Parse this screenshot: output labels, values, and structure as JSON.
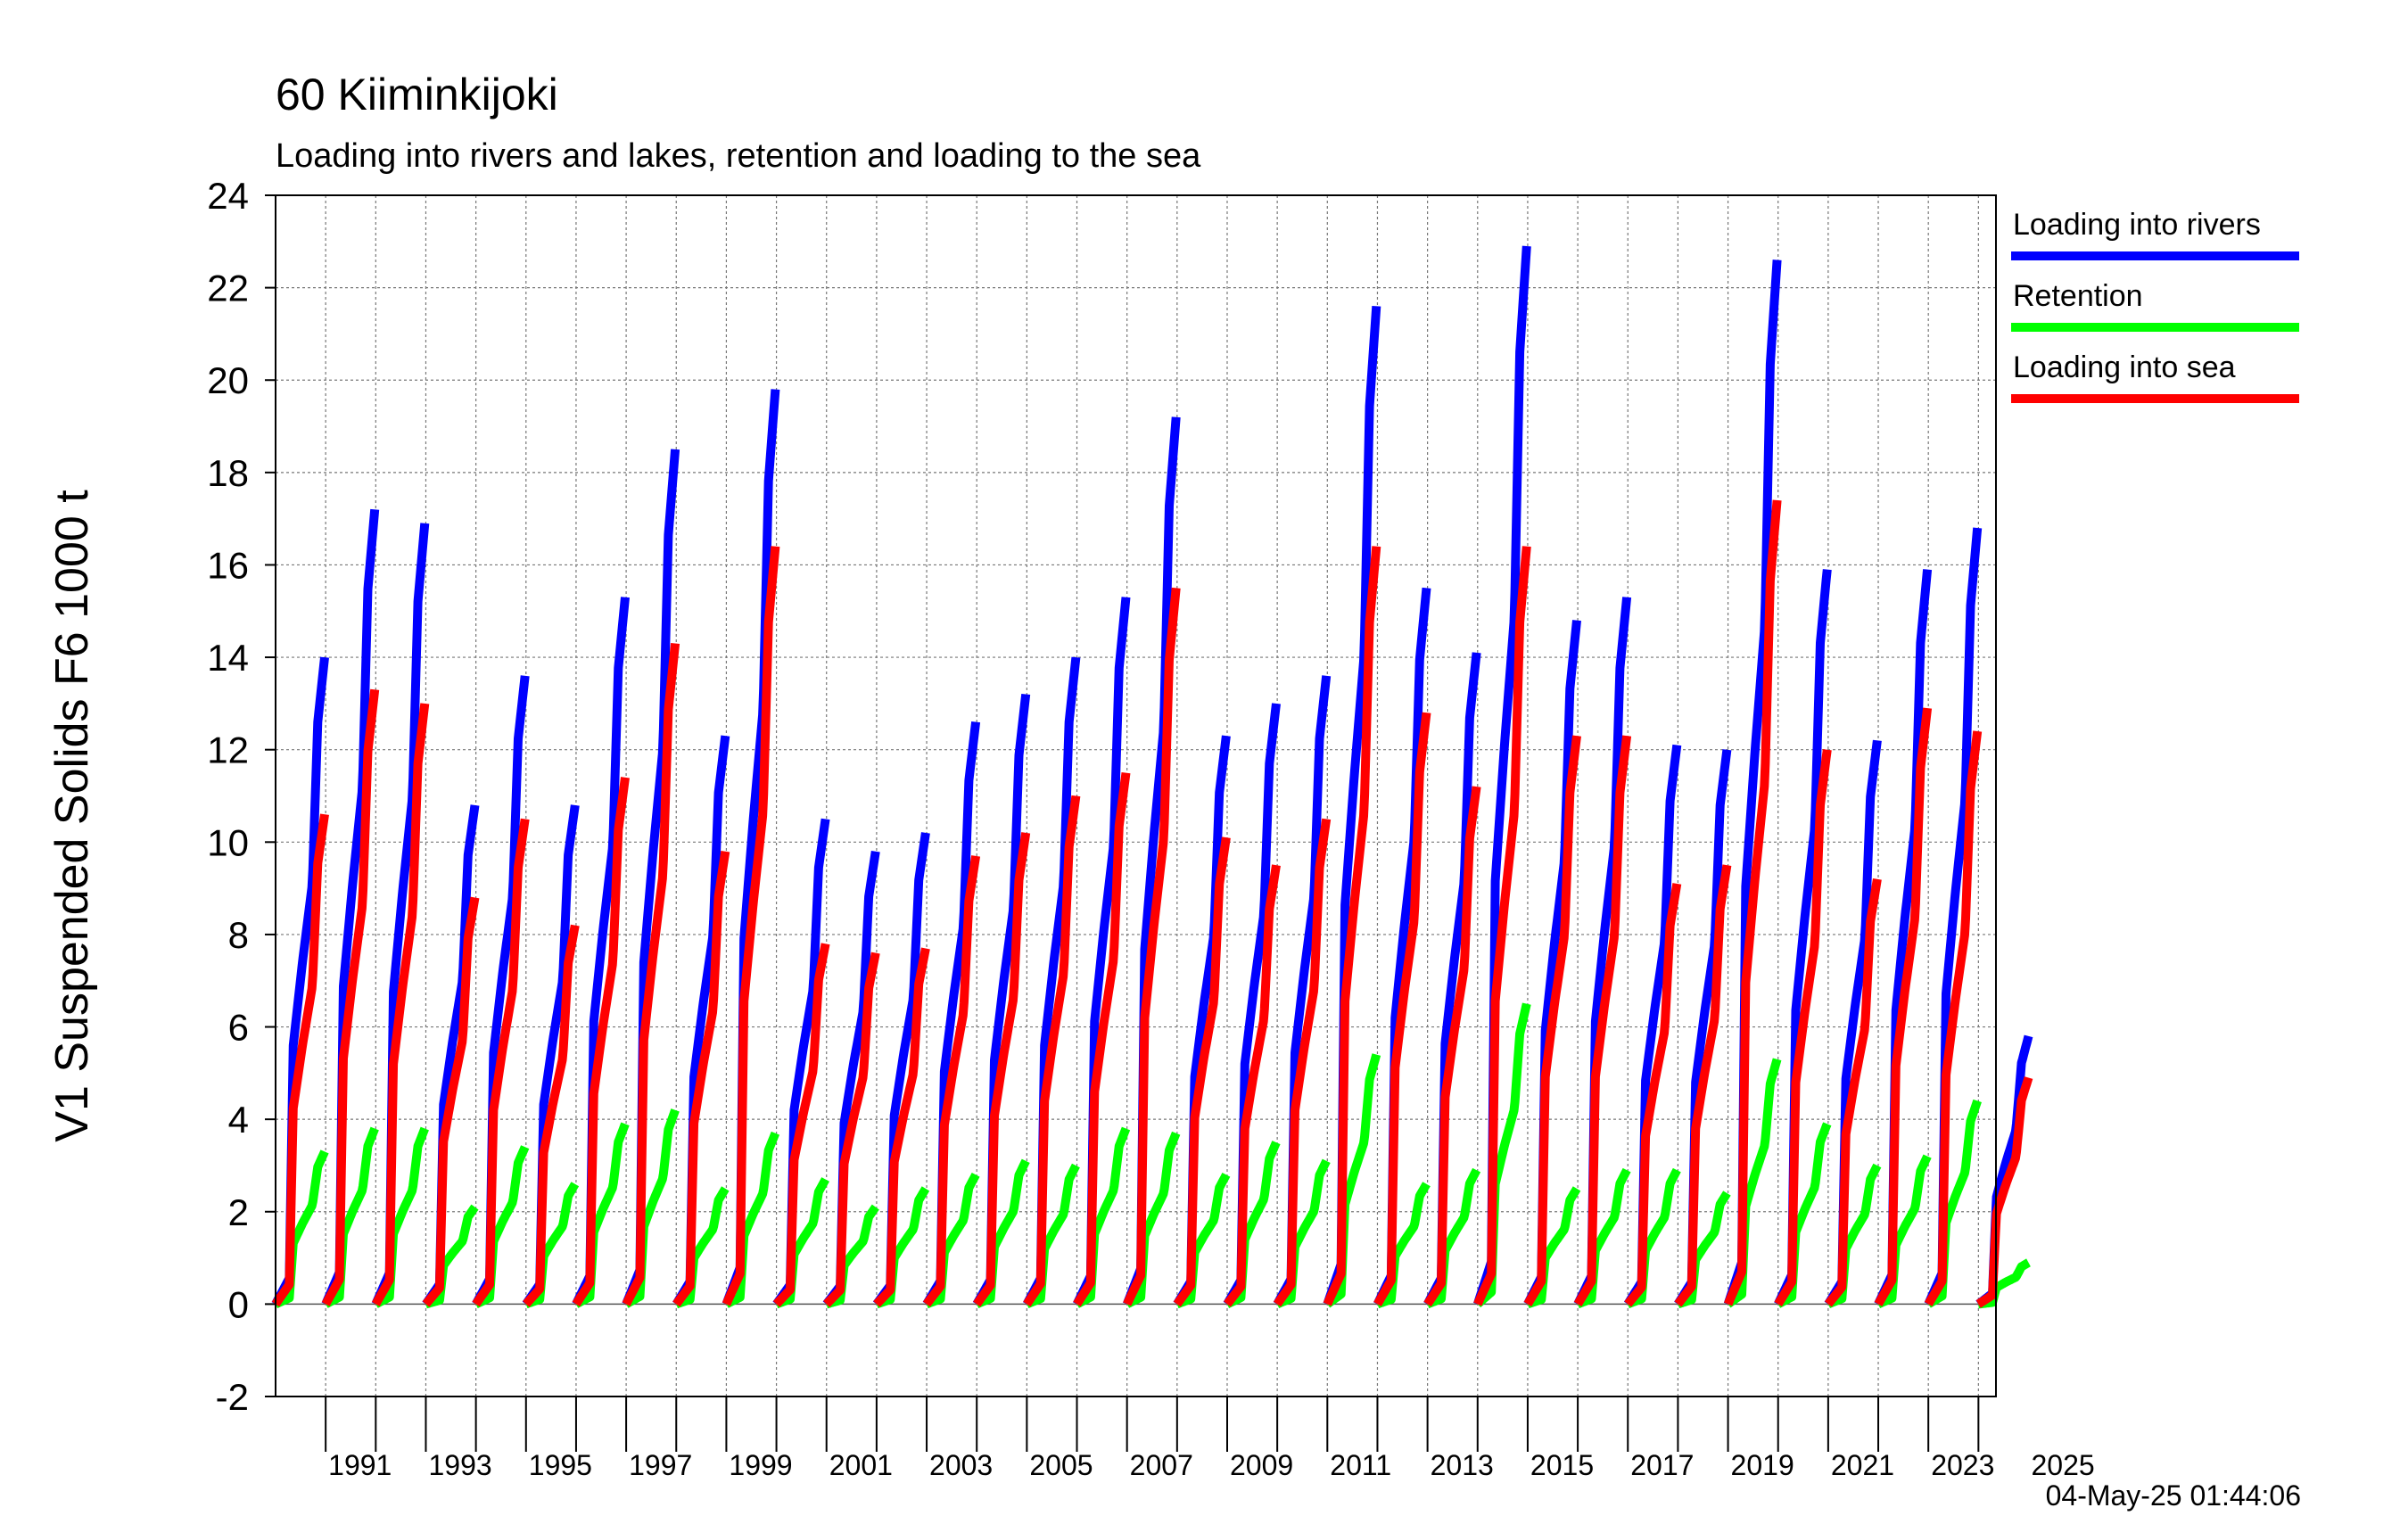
{
  "chart_data": {
    "type": "line",
    "title": "60 Kiiminkijoki",
    "subtitle": "Loading into rivers and lakes, retention and loading to the sea",
    "ylabel": "V1 Suspended Solids F6 1000 t",
    "xlabel": "",
    "timestamp": "04-May-25 01:44:06",
    "ylim": [
      -2,
      24
    ],
    "yticks": [
      "-2",
      "0",
      "2",
      "4",
      "6",
      "8",
      "10",
      "12",
      "14",
      "16",
      "18",
      "20",
      "22",
      "24"
    ],
    "xlim": [
      1990,
      2024.35
    ],
    "xticks": [
      "1991",
      "1993",
      "1995",
      "1997",
      "1999",
      "2001",
      "2003",
      "2005",
      "2007",
      "2009",
      "2011",
      "2013",
      "2015",
      "2017",
      "2019",
      "2021",
      "2023",
      "2025"
    ],
    "grid": true,
    "legend_position": "right",
    "years": [
      1990,
      1991,
      1992,
      1993,
      1994,
      1995,
      1996,
      1997,
      1998,
      1999,
      2000,
      2001,
      2002,
      2003,
      2004,
      2005,
      2006,
      2007,
      2008,
      2009,
      2010,
      2011,
      2012,
      2013,
      2014,
      2015,
      2016,
      2017,
      2018,
      2019,
      2020,
      2021,
      2022,
      2023,
      2024
    ],
    "series": [
      {
        "name": "Loading into rivers",
        "color": "#0000ff",
        "annual_totals": [
          14.0,
          17.2,
          16.9,
          10.8,
          13.6,
          10.8,
          15.3,
          18.5,
          12.3,
          19.8,
          10.5,
          9.8,
          10.2,
          12.6,
          13.2,
          14.0,
          15.3,
          19.2,
          12.3,
          13.0,
          13.6,
          21.6,
          15.5,
          14.1,
          22.9,
          14.8,
          15.3,
          12.1,
          12.0,
          22.6,
          15.9,
          12.2,
          15.9,
          16.8,
          5.8
        ]
      },
      {
        "name": "Retention",
        "color": "#00ff00",
        "annual_totals": [
          3.3,
          3.8,
          3.8,
          2.1,
          3.4,
          2.6,
          3.9,
          4.2,
          2.5,
          3.7,
          2.7,
          2.1,
          2.5,
          2.8,
          3.1,
          3.0,
          3.8,
          3.7,
          2.8,
          3.5,
          3.1,
          5.4,
          2.6,
          2.9,
          6.5,
          2.5,
          2.9,
          2.9,
          2.4,
          5.3,
          3.9,
          3.0,
          3.2,
          4.4,
          0.9
        ]
      },
      {
        "name": "Loading into sea",
        "color": "#ff0000",
        "annual_totals": [
          10.6,
          13.3,
          13.0,
          8.8,
          10.5,
          8.2,
          11.4,
          14.3,
          9.8,
          16.4,
          7.8,
          7.6,
          7.7,
          9.7,
          10.2,
          11.0,
          11.5,
          15.5,
          10.1,
          9.5,
          10.5,
          16.4,
          12.8,
          11.2,
          16.4,
          12.3,
          12.3,
          9.1,
          9.5,
          17.4,
          12.0,
          9.2,
          12.9,
          12.4,
          4.9
        ]
      }
    ]
  }
}
